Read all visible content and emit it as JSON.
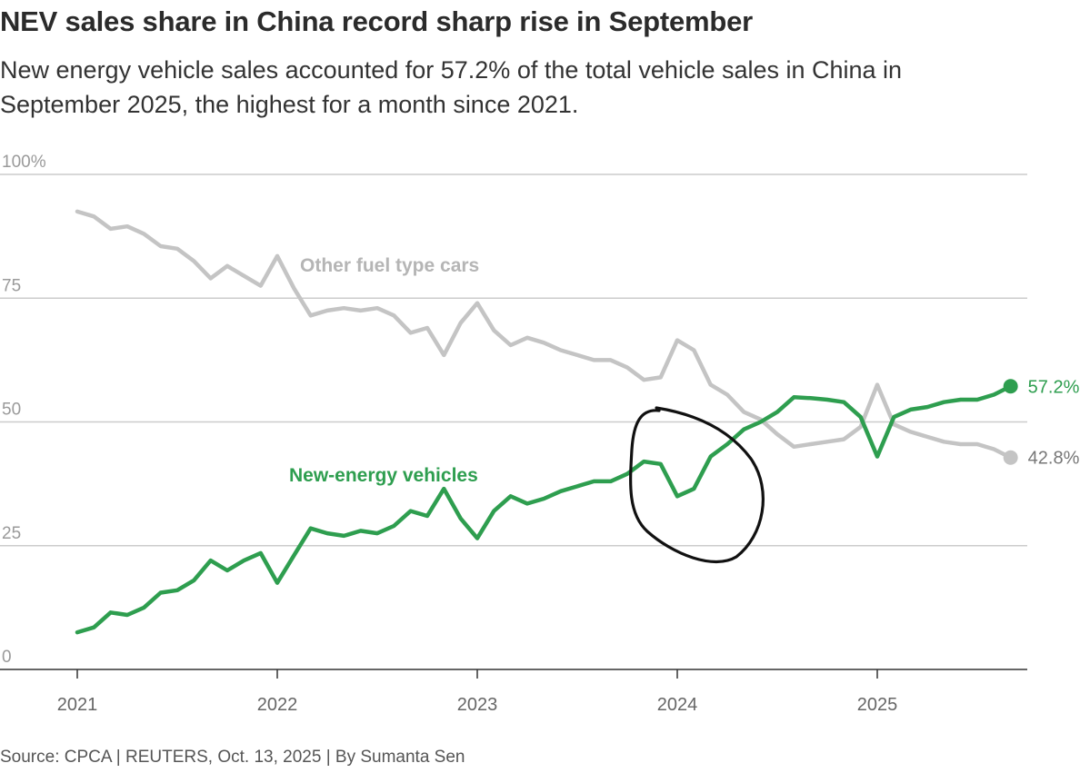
{
  "header": {
    "title": "NEV sales share in China record sharp rise in September",
    "subtitle": "New energy vehicle sales accounted for 57.2% of the total vehicle sales in China in September 2025, the highest for a month since 2021."
  },
  "footer": {
    "source": "Source: CPCA | REUTERS, Oct. 13, 2025 | By Sumanta Sen"
  },
  "colors": {
    "nev": "#2e9e4f",
    "other": "#c4c4c4",
    "grid": "#cccccc",
    "axis": "#333333",
    "annotation": "#111111"
  },
  "chart_data": {
    "type": "line",
    "title": "NEV sales share in China record sharp rise in September",
    "xlabel": "",
    "ylabel": "",
    "ylim": [
      0,
      100
    ],
    "yticks": [
      0,
      25,
      50,
      75,
      100
    ],
    "ytick_labels": [
      "0",
      "25",
      "50",
      "75",
      "100%"
    ],
    "xtick_labels": [
      "2021",
      "2022",
      "2023",
      "2024",
      "2025"
    ],
    "x_start": "2021-01",
    "months": 57,
    "series": [
      {
        "name": "New-energy vehicles",
        "color": "#2e9e4f",
        "end_label": "57.2%",
        "values": [
          7.5,
          8.5,
          11.5,
          11,
          12.5,
          15.5,
          16,
          18,
          22,
          20,
          22,
          23.5,
          17.5,
          23,
          28.5,
          27.5,
          27,
          28,
          27.5,
          29,
          32,
          31,
          36.5,
          30.5,
          26.5,
          32,
          35,
          33.5,
          34.5,
          36,
          37,
          38,
          38,
          39.5,
          42,
          41.5,
          35,
          36.5,
          43,
          45.5,
          48.5,
          50,
          52,
          55,
          54.8,
          54.5,
          54,
          51,
          43,
          51,
          52.5,
          53,
          54,
          54.5,
          54.5,
          55.5,
          57.2
        ]
      },
      {
        "name": "Other fuel type cars",
        "color": "#c4c4c4",
        "end_label": "42.8%",
        "values": [
          92.5,
          91.5,
          89,
          89.5,
          88,
          85.5,
          85,
          82.5,
          79,
          81.5,
          79.5,
          77.5,
          83.5,
          77,
          71.5,
          72.5,
          73,
          72.5,
          73,
          71.5,
          68,
          69,
          63.5,
          70,
          74,
          68.5,
          65.5,
          67,
          66,
          64.5,
          63.5,
          62.5,
          62.5,
          61,
          58.5,
          59,
          66.5,
          64.5,
          57.5,
          55.5,
          52,
          50.5,
          47.5,
          45,
          45.5,
          46,
          46.5,
          49,
          57.5,
          49.5,
          48,
          47,
          46,
          45.5,
          45.5,
          44.5,
          42.8
        ]
      }
    ],
    "annotations": [
      {
        "type": "hand-drawn-circle",
        "around": "2024-01 dip"
      }
    ]
  }
}
